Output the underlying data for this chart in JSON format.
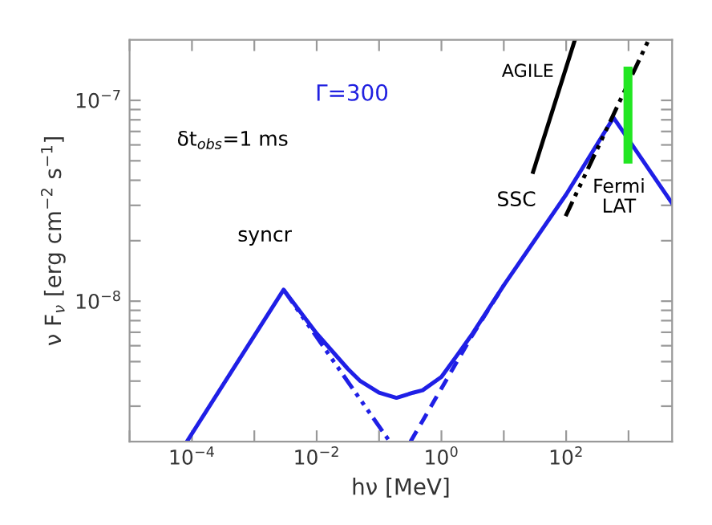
{
  "chart_data": {
    "type": "line",
    "xlabel": "hν [MeV]",
    "ylabel": "ν F$_{ν}$ [erg cm$^{−2}$ s$^{−1}$]",
    "log": "xy",
    "grid": false,
    "legend": false,
    "marker": "none",
    "xlim": [
      1e-05,
      5000
    ],
    "ylim": [
      2e-09,
      2e-07
    ],
    "xticks": [
      {
        "value": 1e-05,
        "label": null
      },
      {
        "value": 0.0001,
        "label": "10$^{−4}$"
      },
      {
        "value": 0.001,
        "label": null
      },
      {
        "value": 0.01,
        "label": "10$^{−2}$"
      },
      {
        "value": 0.1,
        "label": null
      },
      {
        "value": 1,
        "label": "10$^{0}$"
      },
      {
        "value": 10,
        "label": null
      },
      {
        "value": 100,
        "label": "10$^{2}$"
      },
      {
        "value": 1000,
        "label": null
      }
    ],
    "yticks": [
      {
        "value": 3e-09,
        "label": null
      },
      {
        "value": 4e-09,
        "label": null
      },
      {
        "value": 5e-09,
        "label": null
      },
      {
        "value": 6e-09,
        "label": null
      },
      {
        "value": 7e-09,
        "label": null
      },
      {
        "value": 8e-09,
        "label": null
      },
      {
        "value": 9e-09,
        "label": null
      },
      {
        "value": 1e-08,
        "label": "10$^{−8}$"
      },
      {
        "value": 2e-08,
        "label": null
      },
      {
        "value": 3e-08,
        "label": null
      },
      {
        "value": 4e-08,
        "label": null
      },
      {
        "value": 5e-08,
        "label": null
      },
      {
        "value": 6e-08,
        "label": null
      },
      {
        "value": 7e-08,
        "label": null
      },
      {
        "value": 8e-08,
        "label": null
      },
      {
        "value": 9e-08,
        "label": null
      },
      {
        "value": 1e-07,
        "label": "10$^{−7}$"
      }
    ],
    "series": [
      {
        "color": "#1f1fe6",
        "line_style": "solid",
        "x": [
          8.3e-05,
          0.00295,
          0.01,
          0.0316,
          0.05,
          0.1,
          0.19,
          0.35,
          0.5,
          1,
          1.8,
          3.16,
          10,
          100,
          575,
          4900
        ],
        "values": [
          2e-09,
          1.14e-08,
          6.9e-09,
          4.6e-09,
          4e-09,
          3.5e-09,
          3.3e-09,
          3.5e-09,
          3.6e-09,
          4.2e-09,
          5.4e-09,
          6.9e-09,
          1.2e-08,
          3.4e-08,
          8.2e-08,
          3.1e-08
        ]
      },
      {
        "color": "#1f1fe6",
        "line_style": "dashdot",
        "x": [
          0.00295,
          0.148
        ],
        "values": [
          1.14e-08,
          2e-09
        ]
      },
      {
        "color": "#1f1fe6",
        "line_style": "dashed",
        "x": [
          0.32,
          3.16,
          10
        ],
        "values": [
          2e-09,
          6.8e-09,
          1.2e-08
        ]
      },
      {
        "color": "#000000",
        "line_style": "solid",
        "x": [
          29.5,
          138
        ],
        "values": [
          4.4e-08,
          2e-07
        ]
      },
      {
        "color": "#000000",
        "line_style": "dashdot",
        "x": [
          98,
          2100
        ],
        "values": [
          2.65e-08,
          2e-07
        ]
      },
      {
        "color": "#22e622",
        "line_style": "solid",
        "x": [
          980,
          980
        ],
        "values": [
          5.1e-08,
          1.4e-07
        ]
      }
    ],
    "annotations": [
      "Γ=300",
      "δt$_{obs}$=1 ms",
      "syncr",
      "SSC",
      "AGILE",
      "Fermi\nLAT"
    ]
  }
}
